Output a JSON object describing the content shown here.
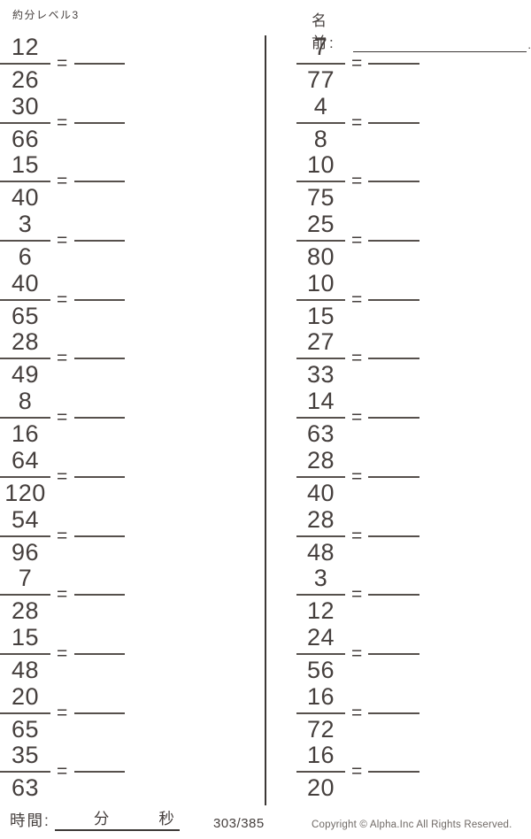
{
  "header": {
    "title": "約分レベル3",
    "name_label": "名前:",
    "name_line_end": "."
  },
  "equals_sign": "=",
  "problems": {
    "left": [
      {
        "numerator": "12",
        "denominator": "26"
      },
      {
        "numerator": "30",
        "denominator": "66"
      },
      {
        "numerator": "15",
        "denominator": "40"
      },
      {
        "numerator": "3",
        "denominator": "6"
      },
      {
        "numerator": "40",
        "denominator": "65"
      },
      {
        "numerator": "28",
        "denominator": "49"
      },
      {
        "numerator": "8",
        "denominator": "16"
      },
      {
        "numerator": "64",
        "denominator": "120"
      },
      {
        "numerator": "54",
        "denominator": "96"
      },
      {
        "numerator": "7",
        "denominator": "28"
      },
      {
        "numerator": "15",
        "denominator": "48"
      },
      {
        "numerator": "20",
        "denominator": "65"
      },
      {
        "numerator": "35",
        "denominator": "63"
      }
    ],
    "right": [
      {
        "numerator": "7",
        "denominator": "77"
      },
      {
        "numerator": "4",
        "denominator": "8"
      },
      {
        "numerator": "10",
        "denominator": "75"
      },
      {
        "numerator": "25",
        "denominator": "80"
      },
      {
        "numerator": "10",
        "denominator": "15"
      },
      {
        "numerator": "27",
        "denominator": "33"
      },
      {
        "numerator": "14",
        "denominator": "63"
      },
      {
        "numerator": "28",
        "denominator": "40"
      },
      {
        "numerator": "28",
        "denominator": "48"
      },
      {
        "numerator": "3",
        "denominator": "12"
      },
      {
        "numerator": "24",
        "denominator": "56"
      },
      {
        "numerator": "16",
        "denominator": "72"
      },
      {
        "numerator": "16",
        "denominator": "20"
      }
    ]
  },
  "footer": {
    "time_label": "時間:",
    "minutes_label": "分",
    "seconds_label": "秒",
    "page_number": "303/385",
    "copyright": "Copyright ©  Alpha.Inc All Rights Reserved."
  },
  "colors": {
    "ink": "#453f3d",
    "rule_line": "#56504c",
    "divider": "#3c3836",
    "muted_text": "#6f6965"
  }
}
